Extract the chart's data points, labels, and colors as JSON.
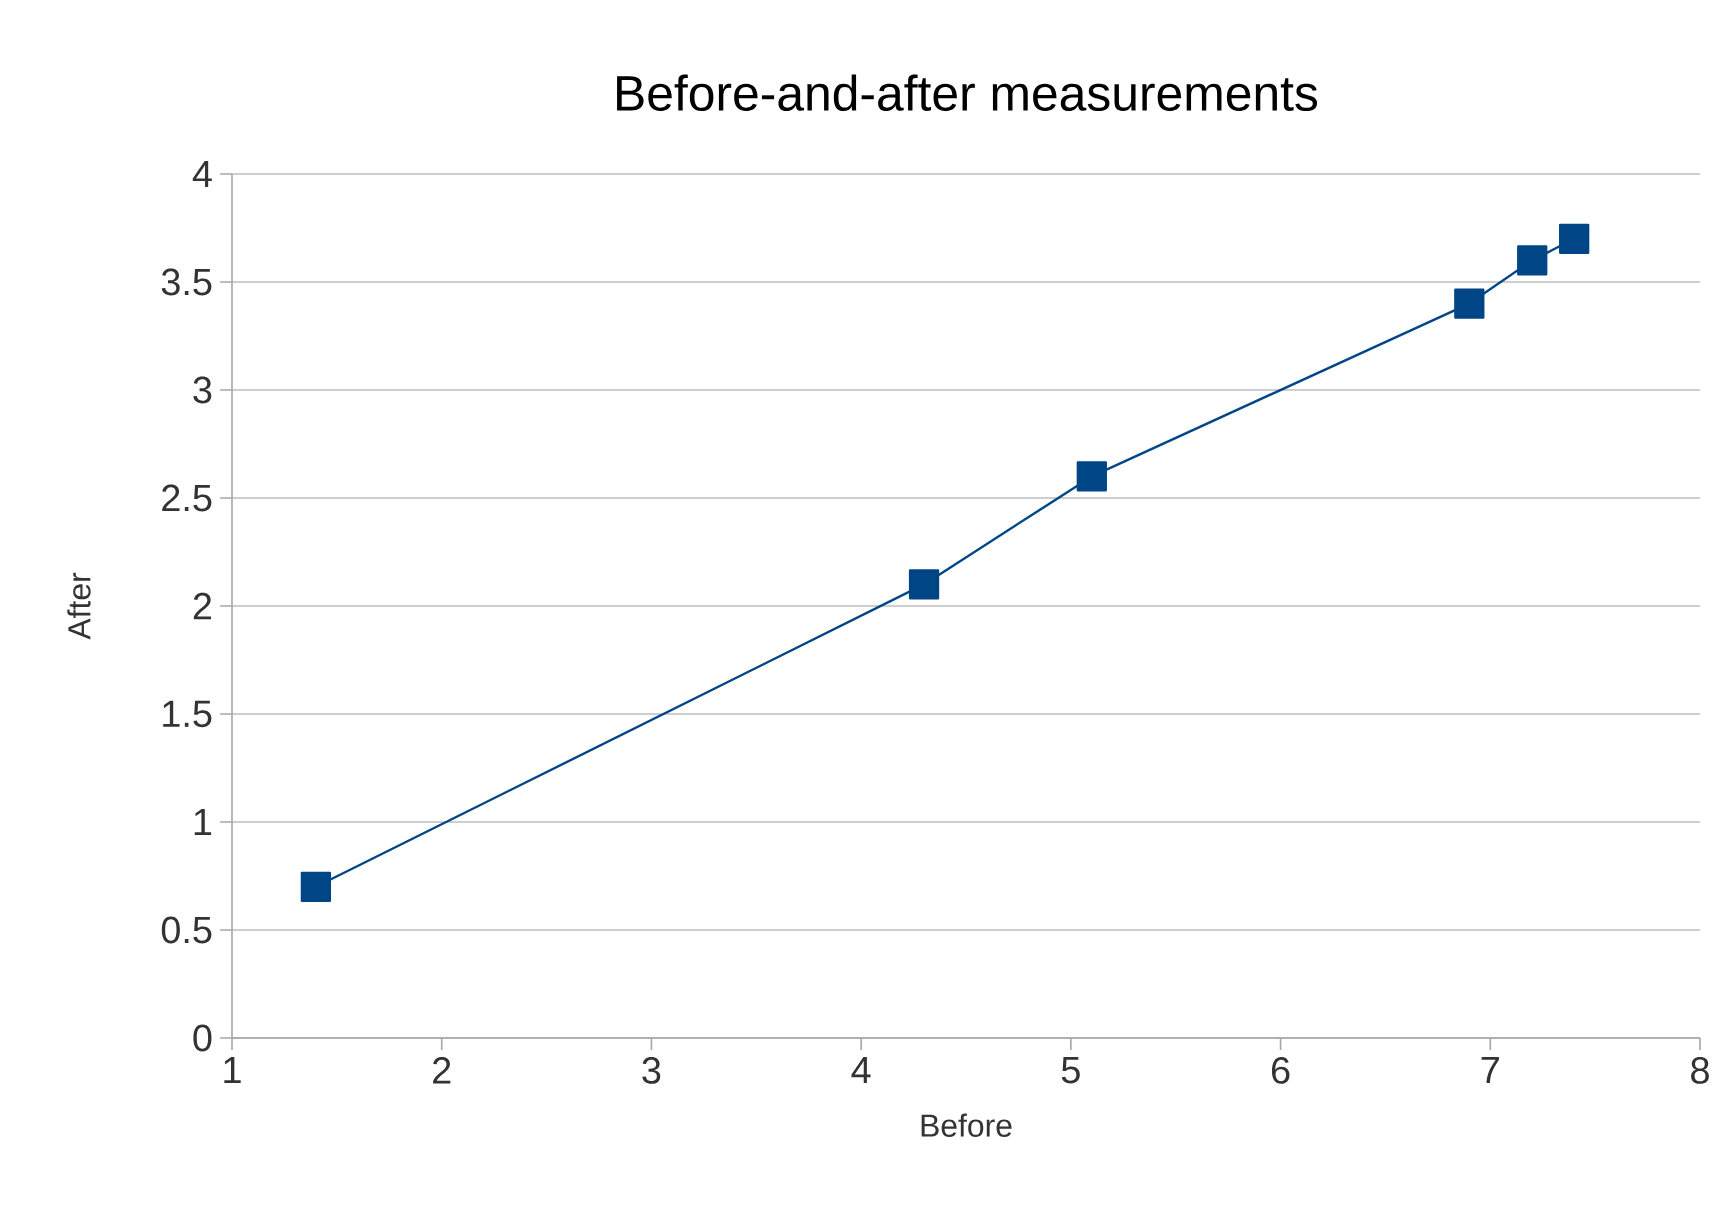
{
  "chart_data": {
    "type": "line",
    "title": "Before-and-after measurements",
    "xlabel": "Before",
    "ylabel": "After",
    "x": [
      1.4,
      4.3,
      5.1,
      6.9,
      7.2,
      7.4
    ],
    "series": [
      {
        "color": "#004586",
        "values": [
          0.7,
          2.1,
          2.6,
          3.4,
          3.6,
          3.7
        ]
      }
    ],
    "xlim": [
      1,
      8
    ],
    "ylim": [
      0,
      4
    ],
    "xticks": [
      1,
      2,
      3,
      4,
      5,
      6,
      7,
      8
    ],
    "yticks": [
      0,
      0.5,
      1,
      1.5,
      2,
      2.5,
      3,
      3.5,
      4
    ],
    "grid": "y",
    "marker": "square",
    "line_style": "solid"
  }
}
